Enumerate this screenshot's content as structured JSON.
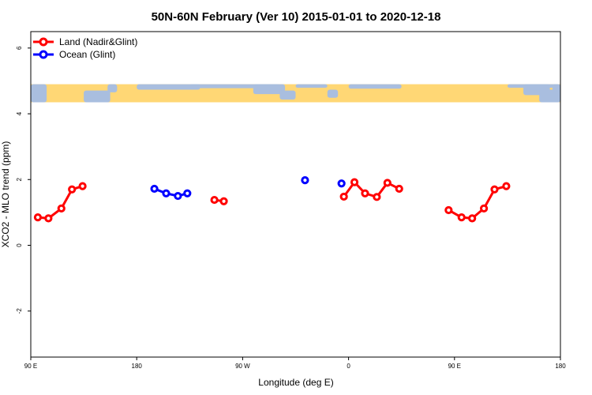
{
  "chart_data": {
    "type": "line",
    "title": "50N-60N February (Ver 10)   2015-01-01 to 2020-12-18",
    "xlabel": "Longitude (deg E)",
    "ylabel": "XCO2 - MLO trend (ppm)",
    "xlim": [
      90,
      540
    ],
    "ylim": [
      -3.4,
      6.5
    ],
    "x_ticks": [
      {
        "value": 90,
        "label": "90 E"
      },
      {
        "value": 180,
        "label": "180"
      },
      {
        "value": 270,
        "label": "90 W"
      },
      {
        "value": 360,
        "label": "0"
      },
      {
        "value": 450,
        "label": "90 E"
      },
      {
        "value": 540,
        "label": "180"
      }
    ],
    "y_ticks": [
      -2,
      0,
      2,
      4,
      6
    ],
    "grid": false,
    "legend_position": "top-left",
    "map_band": {
      "y_range": [
        4.35,
        4.9
      ],
      "land_color": "#A9BEDF",
      "ocean_color": "#FFD775"
    },
    "series": [
      {
        "name": "Land (Nadir&Glint)",
        "color": "#FF0000",
        "segments": [
          [
            [
              96,
              0.85
            ],
            [
              105,
              0.82
            ],
            [
              116,
              1.12
            ],
            [
              125,
              1.7
            ],
            [
              134,
              1.8
            ]
          ],
          [
            [
              246,
              1.38
            ],
            [
              254,
              1.34
            ]
          ],
          [
            [
              356,
              1.48
            ],
            [
              365,
              1.92
            ],
            [
              374,
              1.58
            ],
            [
              384,
              1.47
            ],
            [
              393,
              1.9
            ],
            [
              403,
              1.72
            ]
          ],
          [
            [
              445,
              1.07
            ],
            [
              456,
              0.85
            ],
            [
              465,
              0.82
            ],
            [
              475,
              1.12
            ],
            [
              484,
              1.7
            ],
            [
              494,
              1.8
            ]
          ]
        ]
      },
      {
        "name": "Ocean (Glint)",
        "color": "#0000FF",
        "segments": [
          [
            [
              195,
              1.72
            ],
            [
              205,
              1.58
            ],
            [
              215,
              1.5
            ],
            [
              223,
              1.58
            ]
          ],
          [
            [
              323,
              1.98
            ]
          ],
          [
            [
              354,
              1.88
            ]
          ]
        ]
      }
    ]
  }
}
